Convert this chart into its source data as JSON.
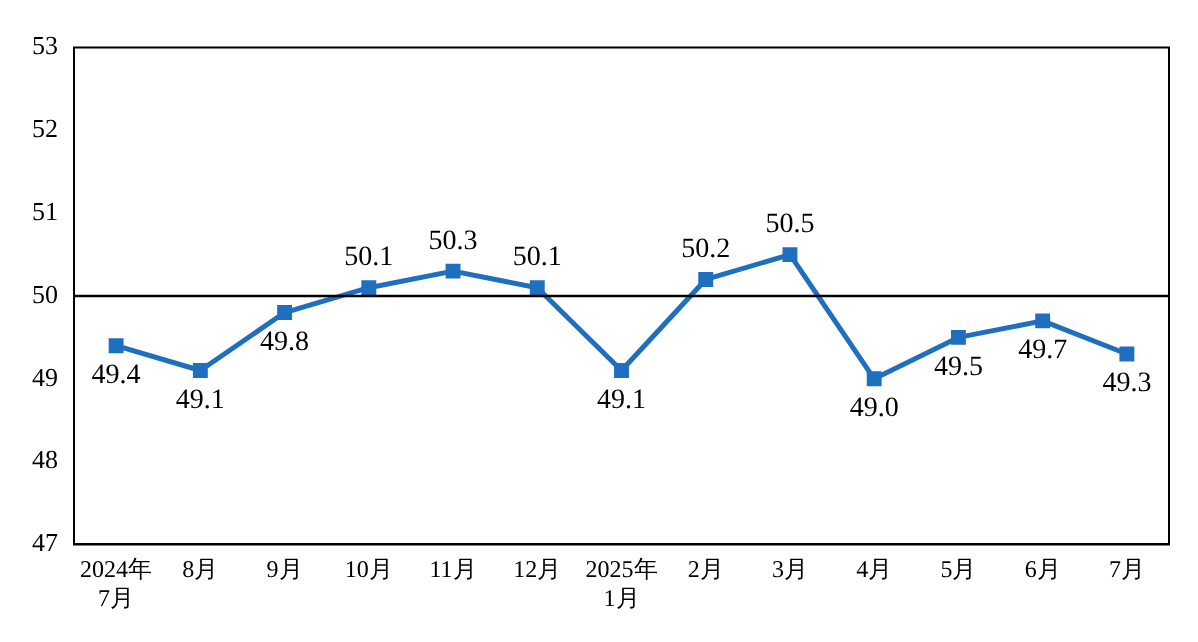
{
  "chart_data": {
    "type": "line",
    "categories": [
      "2024年\n7月",
      "8月",
      "9月",
      "10月",
      "11月",
      "12月",
      "2025年\n1月",
      "2月",
      "3月",
      "4月",
      "5月",
      "6月",
      "7月"
    ],
    "series": [
      {
        "color": "#1f6fc0",
        "values": [
          49.4,
          49.1,
          49.8,
          50.1,
          50.3,
          50.1,
          49.1,
          50.2,
          50.5,
          49.0,
          49.5,
          49.7,
          49.3
        ],
        "value_labels": [
          "49.4",
          "49.1",
          "49.8",
          "50.1",
          "50.3",
          "50.1",
          "49.1",
          "50.2",
          "50.5",
          "49.0",
          "49.5",
          "49.7",
          "49.3"
        ]
      }
    ],
    "ylim": [
      47,
      53
    ],
    "yticks": [
      47,
      48,
      49,
      50,
      51,
      52,
      53
    ],
    "grid": false,
    "legend": false,
    "marker": "square",
    "line_style": "solid",
    "ref_lines": [
      {
        "axis": "y",
        "value": 50,
        "color": "#000000"
      }
    ]
  }
}
